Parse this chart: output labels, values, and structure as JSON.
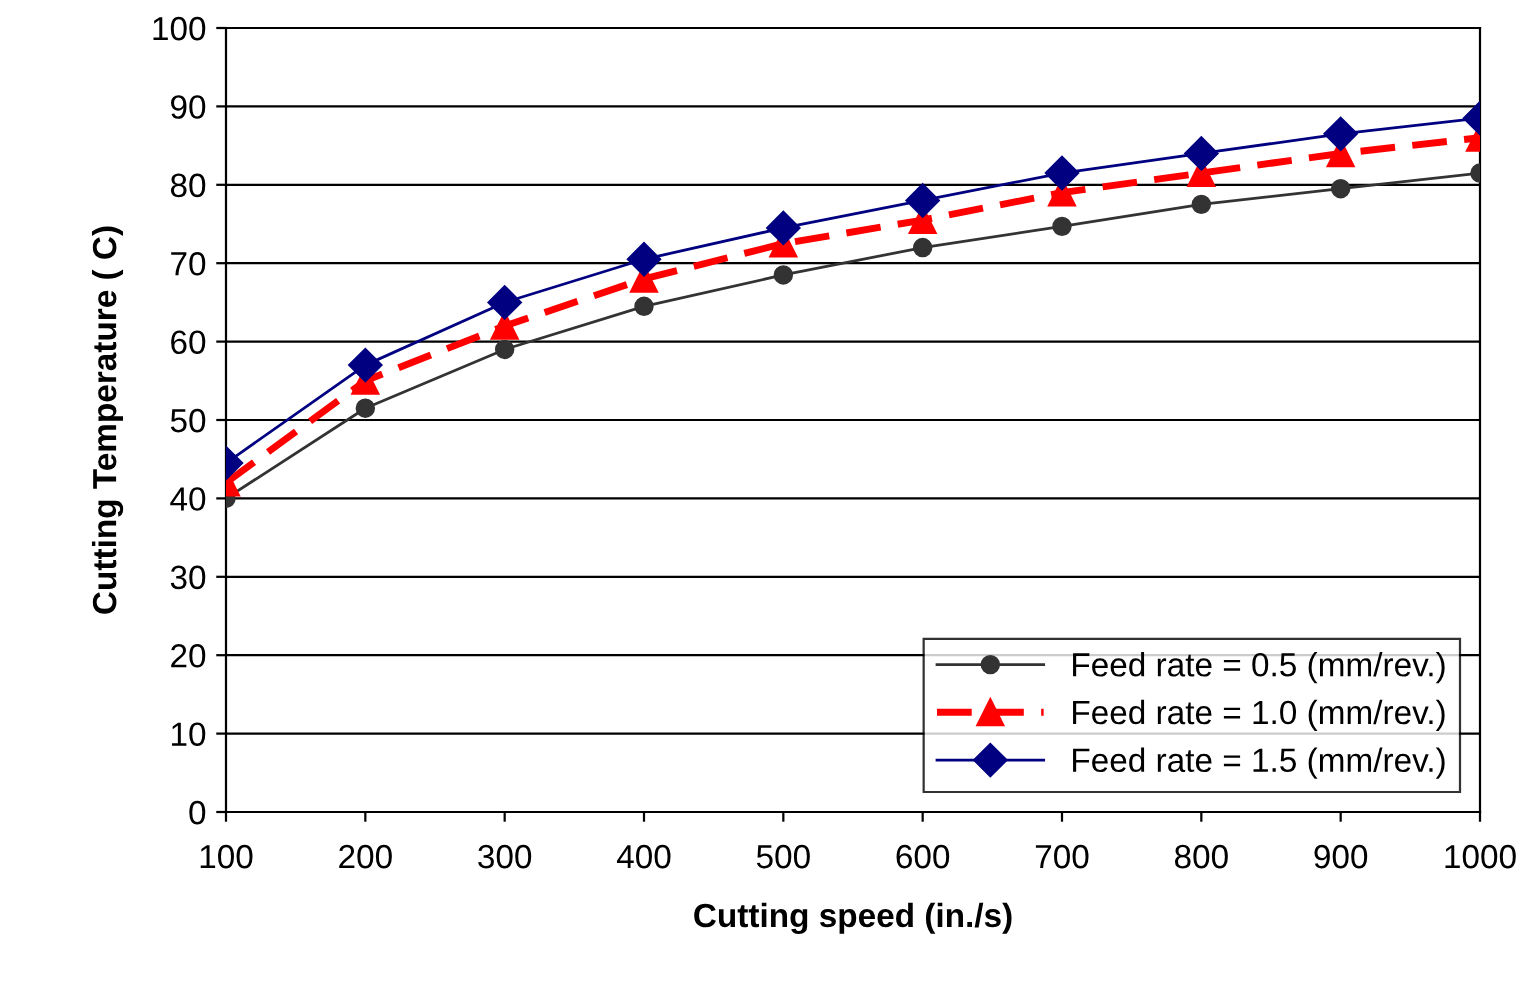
{
  "chart_data": {
    "type": "line",
    "xlabel": "Cutting speed (in./s)",
    "ylabel": "Cutting Temperature ( C)",
    "x": [
      100,
      200,
      300,
      400,
      500,
      600,
      700,
      800,
      900,
      1000
    ],
    "series": [
      {
        "name": "Feed rate = 0.5 (mm/rev.)",
        "color": "#333333",
        "marker": "circle",
        "line_style": "solid",
        "values": [
          40,
          51.5,
          59,
          64.5,
          68.5,
          72,
          74.7,
          77.5,
          79.5,
          81.5
        ]
      },
      {
        "name": "Feed rate = 1.0 (mm/rev.)",
        "color": "#ff0000",
        "marker": "triangle",
        "line_style": "dashed",
        "values": [
          42,
          55,
          62,
          68,
          72.5,
          75.5,
          79,
          81.5,
          84,
          86
        ]
      },
      {
        "name": "Feed rate = 1.5 (mm/rev.)",
        "color": "#000080",
        "marker": "diamond",
        "line_style": "solid",
        "values": [
          44.5,
          57,
          65,
          70.5,
          74.5,
          78,
          81.5,
          84,
          86.5,
          88.5
        ]
      }
    ],
    "xlim": [
      100,
      1000
    ],
    "xticks": [
      100,
      200,
      300,
      400,
      500,
      600,
      700,
      800,
      900,
      1000
    ],
    "ylim": [
      0,
      100
    ],
    "yticks": [
      0,
      10,
      20,
      30,
      40,
      50,
      60,
      70,
      80,
      90,
      100
    ],
    "grid": "y",
    "legend": "bottom right"
  }
}
